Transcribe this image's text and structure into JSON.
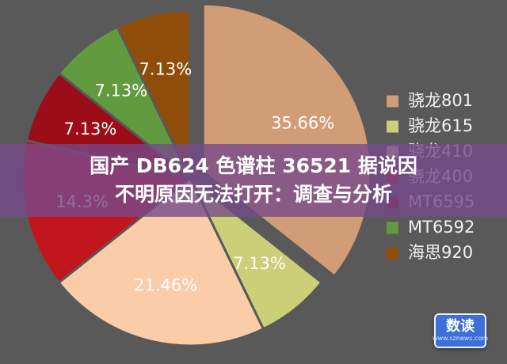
{
  "chart_data": {
    "type": "pie",
    "title": "",
    "legend_position": "right",
    "categories": [
      "骁龙801",
      "骁龙615",
      "骁龙410",
      "骁龙400",
      "MT6595",
      "MT6592",
      "海思920"
    ],
    "values": [
      35.66,
      7.13,
      21.46,
      14.3,
      7.13,
      7.13,
      7.13
    ],
    "data_labels": [
      "35.66%",
      "7.13%",
      "21.46%",
      "14.3%",
      "7.13%",
      "7.13%",
      "7.13%"
    ],
    "colors": [
      "#d09d76",
      "#cbcf78",
      "#fbcca8",
      "#c1161e",
      "#9c0d1a",
      "#629a3f",
      "#904d0a"
    ],
    "exploded": [
      true,
      false,
      false,
      false,
      false,
      false,
      false
    ]
  },
  "banner": {
    "line1": "国产 DB624 色谱柱 36521 据说因",
    "line2": "不明原因无法打开：调查与分析"
  },
  "logo": {
    "main": "数读",
    "sub": "www.sznews.com"
  }
}
